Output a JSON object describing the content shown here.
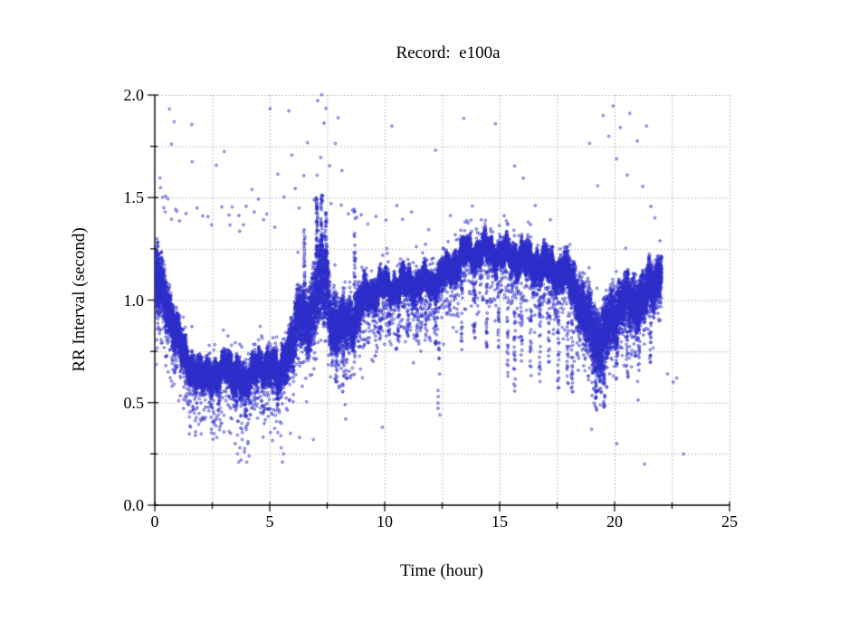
{
  "chart_data": {
    "type": "scatter",
    "title": "Record:  e100a",
    "xlabel": "Time (hour)",
    "ylabel": "RR Interval (second)",
    "xlim": [
      0,
      25
    ],
    "ylim": [
      0.0,
      2.0
    ],
    "x_major_ticks": [
      "0",
      "5",
      "10",
      "15",
      "20",
      "25"
    ],
    "x_major_values": [
      0,
      5,
      10,
      15,
      20,
      25
    ],
    "x_minor_step": 2.5,
    "y_major_ticks": [
      "0.0",
      "0.5",
      "1.0",
      "1.5",
      "2.0"
    ],
    "y_major_values": [
      0,
      0.5,
      1.0,
      1.5,
      2.0
    ],
    "y_minor_step": 0.25,
    "grid": "dotted, at every minor interval, light gray",
    "legend": "none",
    "marker": {
      "shape": "open-circle",
      "radius_px": 1.25,
      "color": "#2d2dc9"
    },
    "t_end": 22.05,
    "n_band_points": 26000,
    "seed": 7,
    "band_envelope_t_center_halfwidth": [
      [
        0.05,
        1.1,
        0.18
      ],
      [
        0.3,
        1.05,
        0.16
      ],
      [
        0.6,
        0.98,
        0.14
      ],
      [
        0.9,
        0.85,
        0.12
      ],
      [
        1.2,
        0.75,
        0.1
      ],
      [
        1.6,
        0.68,
        0.09
      ],
      [
        2.0,
        0.6,
        0.09
      ],
      [
        2.4,
        0.66,
        0.09
      ],
      [
        2.8,
        0.6,
        0.08
      ],
      [
        3.1,
        0.7,
        0.09
      ],
      [
        3.5,
        0.64,
        0.1
      ],
      [
        3.9,
        0.57,
        0.09
      ],
      [
        4.3,
        0.7,
        0.09
      ],
      [
        4.7,
        0.63,
        0.08
      ],
      [
        5.1,
        0.72,
        0.1
      ],
      [
        5.45,
        0.6,
        0.09
      ],
      [
        5.8,
        0.74,
        0.13
      ],
      [
        6.2,
        0.92,
        0.16
      ],
      [
        6.6,
        0.88,
        0.18
      ],
      [
        7.0,
        1.05,
        0.22
      ],
      [
        7.35,
        1.1,
        0.25
      ],
      [
        7.7,
        0.92,
        0.18
      ],
      [
        8.1,
        0.86,
        0.13
      ],
      [
        8.5,
        0.9,
        0.13
      ],
      [
        8.9,
        0.96,
        0.12
      ],
      [
        9.3,
        1.03,
        0.08
      ],
      [
        9.8,
        1.06,
        0.07
      ],
      [
        10.5,
        1.07,
        0.07
      ],
      [
        11.2,
        1.08,
        0.07
      ],
      [
        12.0,
        1.08,
        0.07
      ],
      [
        12.6,
        1.12,
        0.08
      ],
      [
        13.1,
        1.19,
        0.08
      ],
      [
        13.6,
        1.23,
        0.07
      ],
      [
        14.3,
        1.24,
        0.07
      ],
      [
        15.0,
        1.23,
        0.07
      ],
      [
        15.7,
        1.21,
        0.08
      ],
      [
        16.4,
        1.18,
        0.09
      ],
      [
        17.1,
        1.16,
        0.09
      ],
      [
        17.8,
        1.13,
        0.1
      ],
      [
        18.3,
        1.06,
        0.13
      ],
      [
        18.7,
        0.92,
        0.18
      ],
      [
        19.1,
        0.83,
        0.2
      ],
      [
        19.5,
        0.8,
        0.2
      ],
      [
        19.9,
        0.92,
        0.17
      ],
      [
        20.3,
        1.0,
        0.14
      ],
      [
        20.8,
        0.98,
        0.14
      ],
      [
        21.3,
        1.02,
        0.13
      ],
      [
        21.7,
        1.07,
        0.12
      ],
      [
        22.0,
        1.17,
        0.1
      ]
    ],
    "streak_columns_t_lo_hi_n": [
      [
        0.1,
        0.92,
        1.3,
        50
      ],
      [
        3.55,
        0.45,
        0.6,
        18
      ],
      [
        3.95,
        0.43,
        0.58,
        15
      ],
      [
        5.35,
        0.45,
        0.58,
        15
      ],
      [
        6.5,
        1.05,
        1.35,
        25
      ],
      [
        7.05,
        1.2,
        1.5,
        55
      ],
      [
        7.25,
        1.18,
        1.52,
        45
      ],
      [
        7.45,
        1.1,
        1.45,
        35
      ],
      [
        7.9,
        0.6,
        0.8,
        20
      ],
      [
        8.2,
        0.55,
        0.78,
        20
      ],
      [
        8.7,
        1.0,
        1.45,
        30
      ],
      [
        9.8,
        0.8,
        0.95,
        18
      ],
      [
        10.2,
        0.82,
        0.98,
        15
      ],
      [
        10.6,
        0.8,
        0.98,
        18
      ],
      [
        11.0,
        0.82,
        1.0,
        15
      ],
      [
        11.4,
        0.8,
        0.98,
        15
      ],
      [
        11.8,
        0.82,
        1.0,
        15
      ],
      [
        12.2,
        0.78,
        0.98,
        15
      ],
      [
        12.35,
        0.45,
        0.8,
        12
      ],
      [
        13.35,
        0.75,
        1.08,
        22
      ],
      [
        13.9,
        0.8,
        1.08,
        18
      ],
      [
        14.45,
        0.7,
        1.08,
        22
      ],
      [
        14.95,
        0.75,
        1.08,
        18
      ],
      [
        15.35,
        0.62,
        1.02,
        22
      ],
      [
        15.65,
        0.55,
        0.98,
        26
      ],
      [
        15.95,
        0.7,
        1.02,
        18
      ],
      [
        16.35,
        0.62,
        1.0,
        22
      ],
      [
        16.75,
        0.6,
        1.0,
        22
      ],
      [
        17.15,
        0.68,
        1.02,
        18
      ],
      [
        17.55,
        0.55,
        0.95,
        26
      ],
      [
        17.95,
        0.58,
        0.95,
        22
      ],
      [
        18.15,
        0.55,
        0.9,
        22
      ],
      [
        19.2,
        0.45,
        0.68,
        25
      ],
      [
        19.55,
        0.47,
        0.68,
        22
      ],
      [
        20.1,
        0.6,
        0.82,
        18
      ],
      [
        20.55,
        0.62,
        0.85,
        18
      ],
      [
        21.05,
        0.65,
        0.88,
        15
      ],
      [
        21.55,
        0.68,
        0.9,
        15
      ]
    ],
    "outliers_high_t_rr": [
      [
        0.22,
        1.61
      ],
      [
        0.3,
        1.55
      ],
      [
        0.35,
        1.5
      ],
      [
        0.4,
        1.46
      ],
      [
        0.45,
        1.52
      ],
      [
        0.5,
        1.44
      ],
      [
        0.55,
        1.48
      ],
      [
        0.63,
        1.94
      ],
      [
        0.7,
        1.4
      ],
      [
        0.74,
        1.75
      ],
      [
        0.82,
        1.87
      ],
      [
        0.85,
        1.43
      ],
      [
        1.0,
        1.44
      ],
      [
        1.1,
        1.38
      ],
      [
        1.3,
        1.42
      ],
      [
        1.6,
        1.86
      ],
      [
        1.66,
        1.69
      ],
      [
        1.9,
        1.45
      ],
      [
        2.1,
        1.4
      ],
      [
        2.3,
        1.42
      ],
      [
        2.5,
        1.38
      ],
      [
        2.7,
        1.65
      ],
      [
        2.9,
        1.45
      ],
      [
        3.0,
        1.72
      ],
      [
        3.2,
        1.4
      ],
      [
        3.3,
        1.36
      ],
      [
        3.4,
        1.45
      ],
      [
        3.6,
        1.42
      ],
      [
        3.7,
        1.34
      ],
      [
        3.8,
        1.38
      ],
      [
        4.0,
        1.45
      ],
      [
        4.2,
        1.55
      ],
      [
        4.3,
        1.42
      ],
      [
        4.5,
        1.48
      ],
      [
        4.7,
        1.38
      ],
      [
        4.9,
        1.42
      ],
      [
        5.0,
        1.93
      ],
      [
        5.2,
        1.36
      ],
      [
        5.4,
        1.6
      ],
      [
        5.6,
        1.5
      ],
      [
        5.8,
        1.92
      ],
      [
        6.0,
        1.7
      ],
      [
        6.1,
        1.55
      ],
      [
        6.3,
        1.45
      ],
      [
        6.5,
        1.6
      ],
      [
        6.7,
        1.78
      ],
      [
        6.9,
        1.5
      ],
      [
        7.0,
        1.62
      ],
      [
        7.1,
        1.96
      ],
      [
        7.2,
        1.7
      ],
      [
        7.25,
        1.99
      ],
      [
        7.3,
        1.52
      ],
      [
        7.4,
        1.85
      ],
      [
        7.5,
        1.95
      ],
      [
        7.6,
        1.65
      ],
      [
        7.7,
        1.48
      ],
      [
        7.9,
        1.75
      ],
      [
        8.0,
        1.88
      ],
      [
        8.1,
        1.45
      ],
      [
        8.2,
        1.62
      ],
      [
        8.4,
        1.42
      ],
      [
        8.6,
        1.45
      ],
      [
        8.8,
        1.4
      ],
      [
        9.0,
        1.42
      ],
      [
        9.3,
        1.38
      ],
      [
        9.6,
        1.42
      ],
      [
        10.0,
        1.4
      ],
      [
        10.3,
        1.85
      ],
      [
        10.5,
        1.45
      ],
      [
        10.8,
        1.38
      ],
      [
        11.2,
        1.42
      ],
      [
        11.9,
        1.35
      ],
      [
        12.2,
        1.74
      ],
      [
        12.8,
        1.4
      ],
      [
        13.4,
        1.9
      ],
      [
        13.8,
        1.45
      ],
      [
        14.2,
        1.4
      ],
      [
        14.8,
        1.86
      ],
      [
        15.2,
        1.42
      ],
      [
        15.6,
        1.64
      ],
      [
        16.0,
        1.6
      ],
      [
        16.5,
        1.45
      ],
      [
        17.2,
        1.4
      ],
      [
        18.9,
        1.75
      ],
      [
        19.3,
        1.55
      ],
      [
        19.5,
        1.9
      ],
      [
        19.7,
        1.8
      ],
      [
        19.9,
        1.95
      ],
      [
        20.1,
        1.7
      ],
      [
        20.3,
        1.85
      ],
      [
        20.5,
        1.6
      ],
      [
        20.7,
        1.92
      ],
      [
        21.0,
        1.78
      ],
      [
        21.2,
        1.55
      ],
      [
        21.4,
        1.86
      ],
      [
        21.6,
        1.45
      ],
      [
        21.8,
        1.4
      ]
    ],
    "outliers_low_t_rr": [
      [
        2.9,
        0.4
      ],
      [
        3.3,
        0.35
      ],
      [
        3.5,
        0.3
      ],
      [
        3.6,
        0.25
      ],
      [
        3.65,
        0.21
      ],
      [
        3.7,
        0.28
      ],
      [
        3.75,
        0.22
      ],
      [
        3.8,
        0.32
      ],
      [
        3.9,
        0.26
      ],
      [
        4.0,
        0.21
      ],
      [
        4.05,
        0.3
      ],
      [
        4.1,
        0.24
      ],
      [
        5.5,
        0.28
      ],
      [
        5.55,
        0.21
      ],
      [
        5.6,
        0.25
      ],
      [
        5.9,
        0.35
      ],
      [
        6.3,
        0.33
      ],
      [
        6.9,
        0.32
      ],
      [
        8.3,
        0.42
      ],
      [
        9.9,
        0.38
      ],
      [
        12.4,
        0.44
      ],
      [
        19.0,
        0.37
      ],
      [
        20.1,
        0.3
      ],
      [
        21.3,
        0.2
      ],
      [
        22.3,
        0.64
      ],
      [
        22.55,
        0.6
      ],
      [
        22.7,
        0.62
      ],
      [
        23.0,
        0.25
      ]
    ],
    "colors": {
      "points": "#2d2dc9",
      "axis": "#000000",
      "grid": "#9b9b9b",
      "background": "#ffffff",
      "text": "#000000"
    }
  }
}
